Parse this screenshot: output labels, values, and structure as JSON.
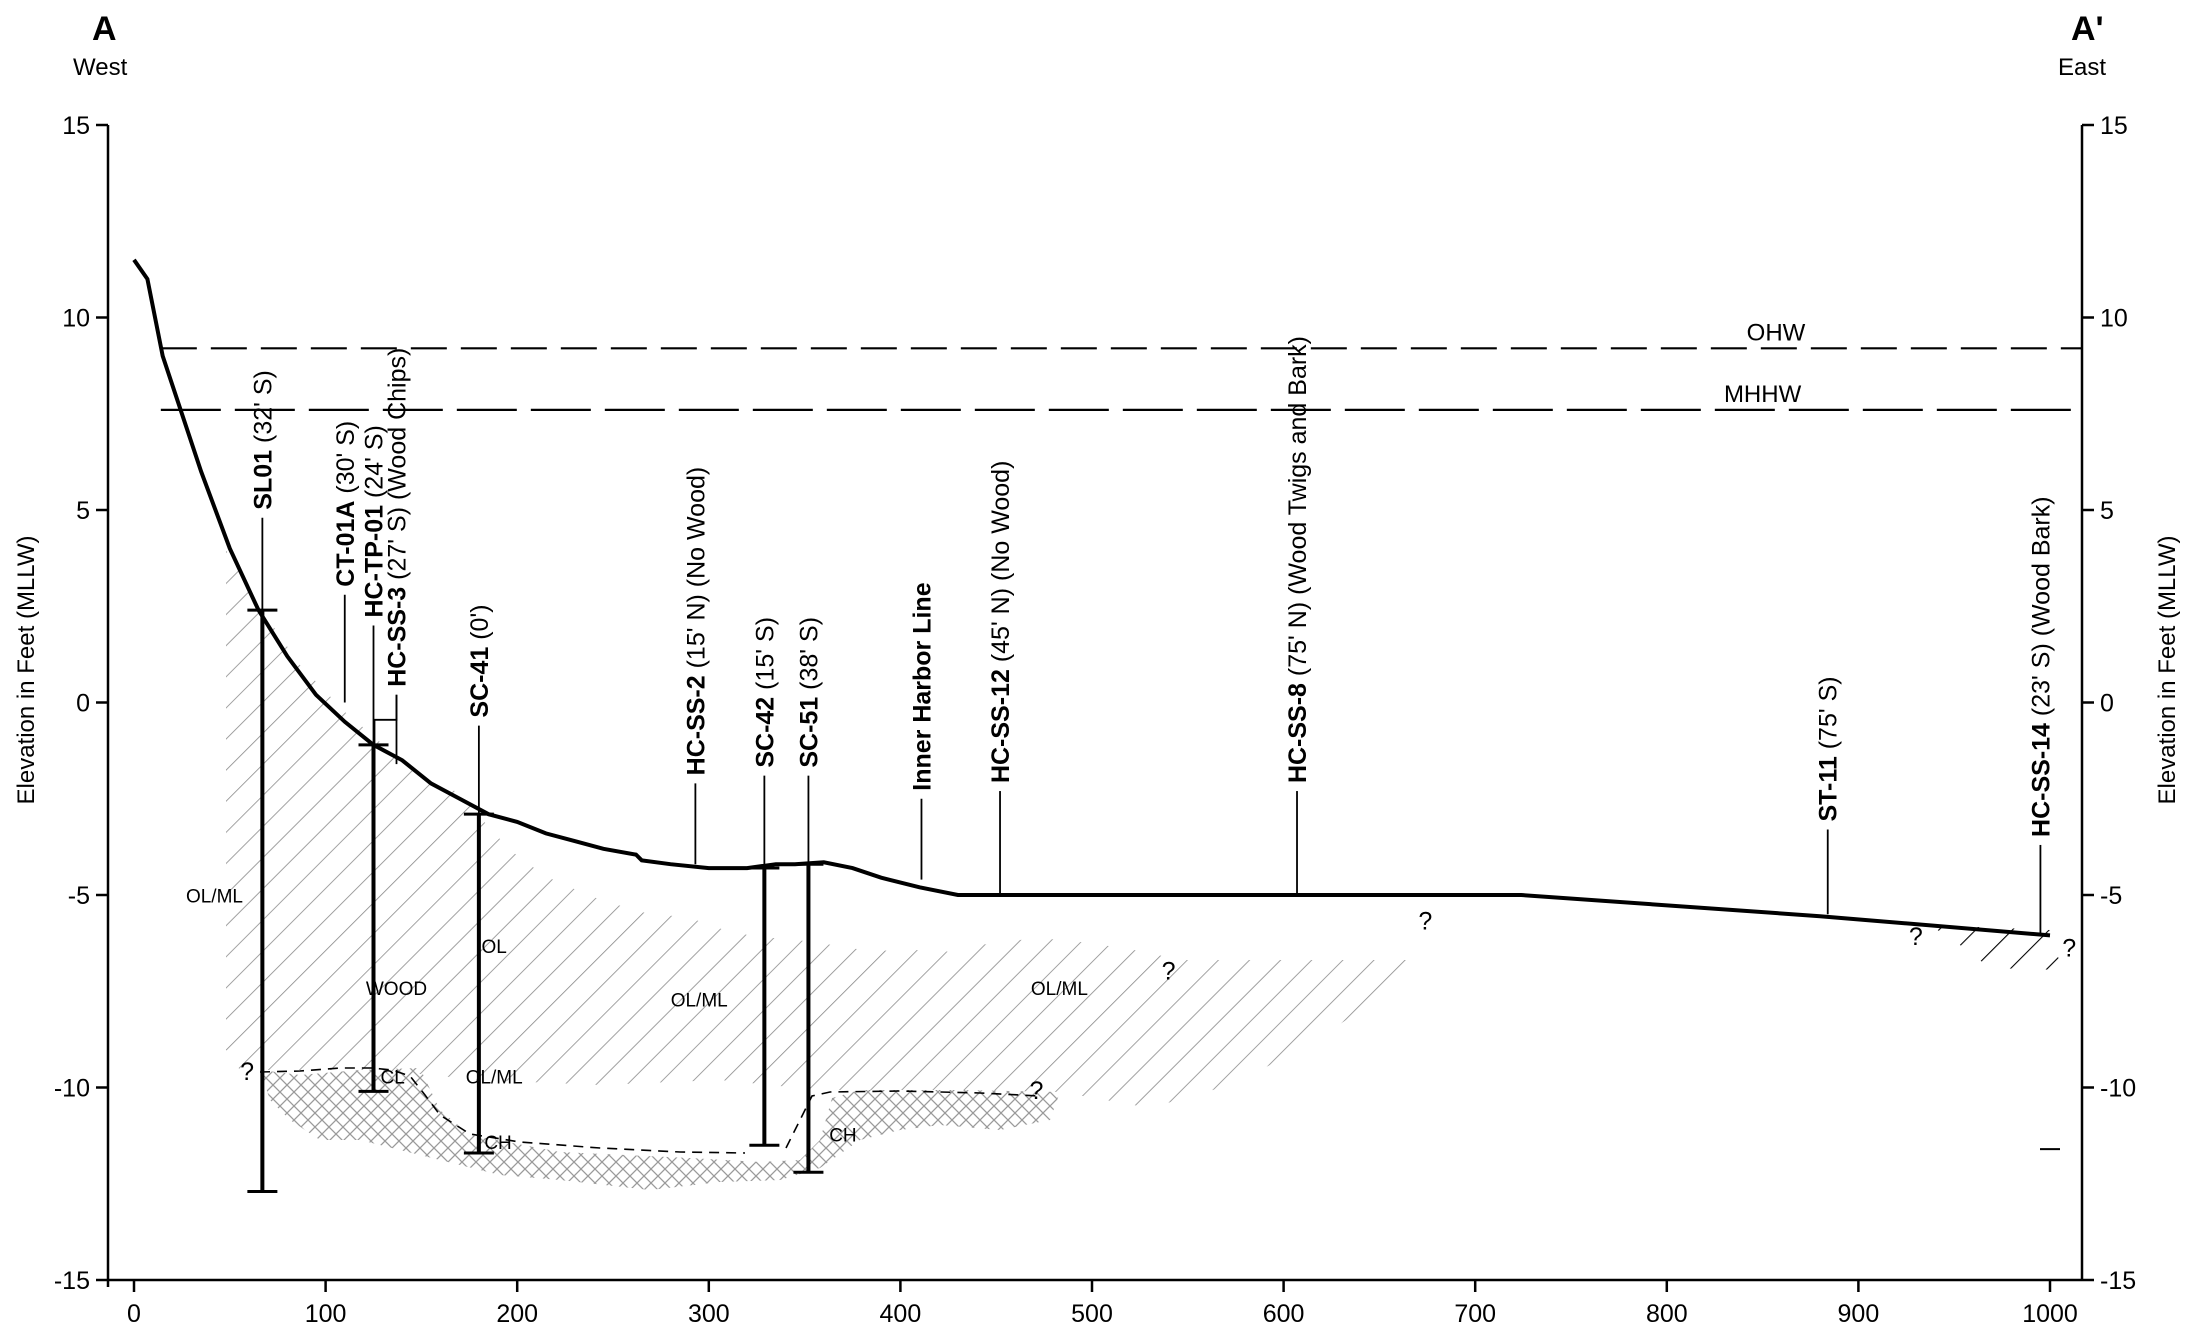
{
  "header": {
    "left_mark": "A",
    "left_dir": "West",
    "right_mark": "A'",
    "right_dir": "East"
  },
  "axes": {
    "y_label": "Elevation in Feet (MLLW)",
    "x_range": [
      0,
      1000
    ],
    "y_range": [
      -15,
      15
    ],
    "x_ticks": [
      "0",
      "100",
      "200",
      "300",
      "400",
      "500",
      "600",
      "700",
      "800",
      "900",
      "1000"
    ],
    "x_tick_values": [
      0,
      100,
      200,
      300,
      400,
      500,
      600,
      700,
      800,
      900,
      1000
    ],
    "y_ticks": [
      "15",
      "10",
      "5",
      "0",
      "-5",
      "-10",
      "-15"
    ],
    "y_tick_values": [
      15,
      10,
      5,
      0,
      -5,
      -10,
      -15
    ]
  },
  "water_levels": [
    {
      "label": "OHW",
      "elevation": 9.2
    },
    {
      "label": "MHHW",
      "elevation": 7.6
    }
  ],
  "mudline_profile": [
    [
      0,
      11.5
    ],
    [
      7,
      11
    ],
    [
      15,
      9
    ],
    [
      25,
      7.5
    ],
    [
      35,
      6
    ],
    [
      50,
      4
    ],
    [
      65,
      2.4
    ],
    [
      80,
      1.2
    ],
    [
      95,
      0.2
    ],
    [
      110,
      -0.5
    ],
    [
      125,
      -1.1
    ],
    [
      140,
      -1.5
    ],
    [
      155,
      -2.1
    ],
    [
      170,
      -2.5
    ],
    [
      185,
      -2.9
    ],
    [
      200,
      -3.1
    ],
    [
      215,
      -3.4
    ],
    [
      230,
      -3.6
    ],
    [
      245,
      -3.8
    ],
    [
      262,
      -3.95
    ],
    [
      265,
      -4.1
    ],
    [
      280,
      -4.2
    ],
    [
      300,
      -4.3
    ],
    [
      320,
      -4.3
    ],
    [
      335,
      -4.2
    ],
    [
      345,
      -4.2
    ],
    [
      360,
      -4.15
    ],
    [
      375,
      -4.3
    ],
    [
      390,
      -4.55
    ],
    [
      410,
      -4.8
    ],
    [
      430,
      -5
    ],
    [
      450,
      -5
    ],
    [
      600,
      -5
    ],
    [
      724,
      -5
    ],
    [
      880,
      -5.55
    ],
    [
      1000,
      -6.05
    ]
  ],
  "sample_locations": [
    {
      "x": 67,
      "id": "SL01",
      "note": "(32' S)",
      "top_elev": 4.8,
      "bottom_elev": 2.3,
      "bar_top": 2.4,
      "bar_bottom": -12.7
    },
    {
      "x": 110,
      "id": "CT-01A",
      "note": "(30' S)",
      "top_elev": 2.8,
      "bottom_elev": 0
    },
    {
      "x": 125,
      "id": "HC-TP-01",
      "note": "(24' S)",
      "top_elev": 2.0,
      "bottom_elev": -1.1,
      "bar_top": -1.1,
      "bar_bottom": -10.1
    },
    {
      "x": 137,
      "id": "HC-SS-3",
      "note": "(27' S) (Wood Chips)",
      "top_elev": 0.2,
      "bottom_elev": -1.6
    },
    {
      "x": 180,
      "id": "SC-41",
      "note": "(0')",
      "top_elev": -0.6,
      "bottom_elev": -2.9,
      "bar_top": -2.9,
      "bar_bottom": -11.7
    },
    {
      "x": 293,
      "id": "HC-SS-2",
      "note": "(15' N) (No Wood)",
      "top_elev": -2.1,
      "bottom_elev": -4.2
    },
    {
      "x": 329,
      "id": "SC-42",
      "note": "(15' S)",
      "top_elev": -1.9,
      "bottom_elev": -4.3,
      "bar_top": -4.3,
      "bar_bottom": -11.5
    },
    {
      "x": 352,
      "id": "SC-51",
      "note": "(38' S)",
      "top_elev": -1.9,
      "bottom_elev": -4.2,
      "bar_top": -4.2,
      "bar_bottom": -12.2
    },
    {
      "x": 411,
      "id": "Inner Harbor Line",
      "note": "",
      "top_elev": -2.5,
      "bottom_elev": -4.6
    },
    {
      "x": 452,
      "id": "HC-SS-12",
      "note": "(45' N) (No Wood)",
      "top_elev": -2.3,
      "bottom_elev": -5
    },
    {
      "x": 607,
      "id": "HC-SS-8",
      "note": "(75' N) (Wood Twigs and Bark)",
      "top_elev": -2.3,
      "bottom_elev": -5
    },
    {
      "x": 884,
      "id": "ST-11",
      "note": "(75' S)",
      "top_elev": -3.3,
      "bottom_elev": -5.5
    },
    {
      "x": 995,
      "id": "HC-SS-14",
      "note": "(23' S) (Wood Bark)",
      "top_elev": -3.7,
      "bottom_elev": -6
    }
  ],
  "soil_labels": [
    {
      "text": "OL/ML",
      "x": 42,
      "y": -5.2
    },
    {
      "text": "OL",
      "x": 188,
      "y": -6.5
    },
    {
      "text": "WOOD",
      "x": 137,
      "y": -7.6
    },
    {
      "text": "OL/ML",
      "x": 295,
      "y": -7.9
    },
    {
      "text": "OL/ML",
      "x": 483,
      "y": -7.6
    },
    {
      "text": "OL/ML",
      "x": 188,
      "y": -9.9
    },
    {
      "text": "CL",
      "x": 135,
      "y": -9.9
    },
    {
      "text": "CH",
      "x": 190,
      "y": -11.6
    },
    {
      "text": "CH",
      "x": 370,
      "y": -11.4
    }
  ],
  "question_marks": [
    {
      "text": "?",
      "x": 59,
      "y": -9.8
    },
    {
      "text": "?",
      "x": 471,
      "y": -10.3
    },
    {
      "text": "?",
      "x": 540,
      "y": -7.2
    },
    {
      "text": "?",
      "x": 674,
      "y": -5.9
    },
    {
      "text": "?",
      "x": 930,
      "y": -6.3
    },
    {
      "text": "?",
      "x": 1010,
      "y": -6.6
    }
  ]
}
